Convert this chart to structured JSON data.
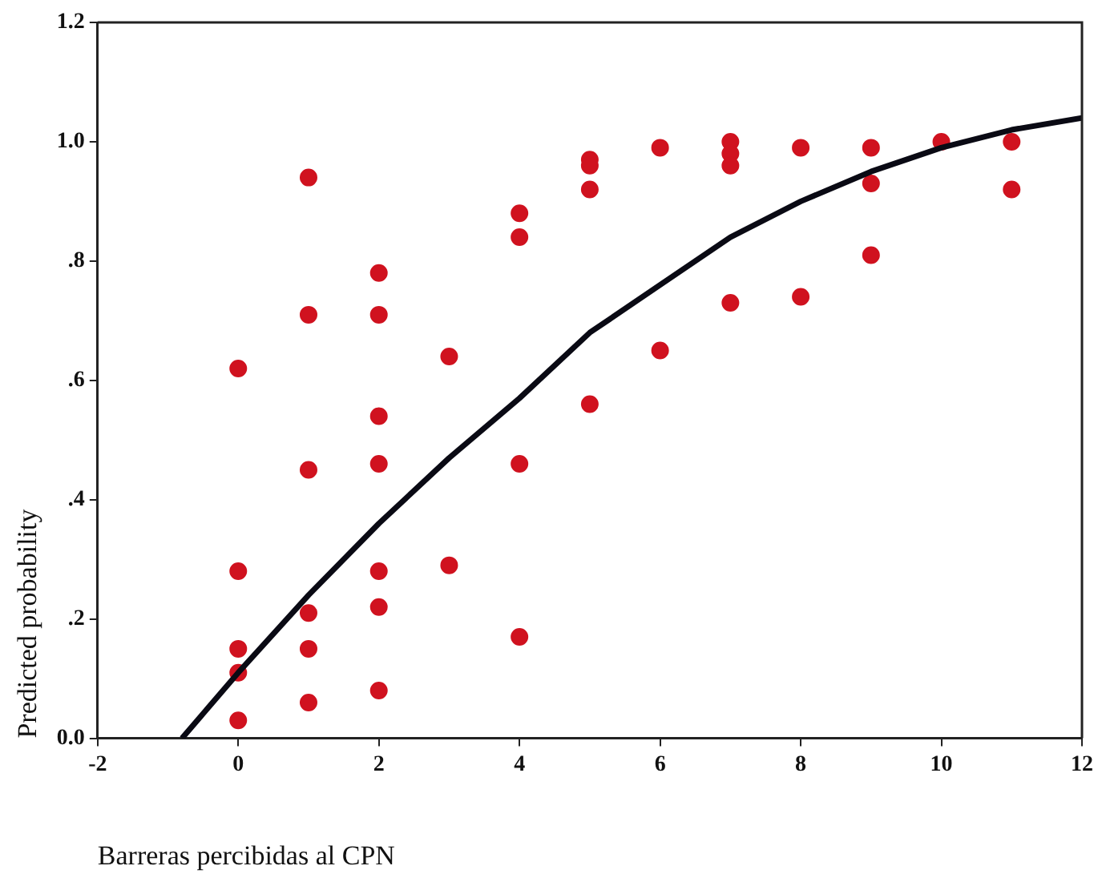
{
  "chart_data": {
    "type": "scatter",
    "xlabel": "Barreras percibidas al CPN",
    "ylabel": "Predicted probability",
    "xlim": [
      -2,
      12
    ],
    "xticks": [
      -2,
      0,
      2,
      4,
      6,
      8,
      10,
      12
    ],
    "ylim": [
      0,
      1.2
    ],
    "yticks": [
      {
        "value": 0,
        "label": "0.0"
      },
      {
        "value": 0.2,
        "label": ".2"
      },
      {
        "value": 0.4,
        "label": ".4"
      },
      {
        "value": 0.6,
        "label": ".6"
      },
      {
        "value": 0.8,
        "label": ".8"
      },
      {
        "value": 1,
        "label": "1.0"
      },
      {
        "value": 1.2,
        "label": "1.2"
      }
    ],
    "grid": false,
    "legend": false,
    "series": [
      {
        "color": "#d0121f",
        "marker": "circle",
        "x": [
          0,
          0,
          0,
          0,
          0,
          1,
          1,
          1,
          1,
          1,
          1,
          2,
          2,
          2,
          2,
          2,
          2,
          2,
          3,
          3,
          4,
          4,
          4,
          4,
          5,
          5,
          5,
          5,
          6,
          6,
          7,
          7,
          7,
          7,
          8,
          8,
          9,
          9,
          9,
          10,
          11,
          11
        ],
        "values": [
          0.62,
          0.28,
          0.15,
          0.11,
          0.03,
          0.94,
          0.71,
          0.45,
          0.21,
          0.15,
          0.06,
          0.78,
          0.71,
          0.54,
          0.46,
          0.28,
          0.22,
          0.08,
          0.64,
          0.29,
          0.88,
          0.84,
          0.46,
          0.17,
          0.97,
          0.96,
          0.92,
          0.56,
          0.99,
          0.65,
          1.0,
          0.98,
          0.96,
          0.73,
          0.99,
          0.74,
          0.99,
          0.93,
          0.81,
          1.0,
          1.0,
          0.92
        ]
      },
      {
        "type": "line",
        "color": "#0a0a14",
        "marker": "none",
        "line_style": "solid",
        "x": [
          -0.8,
          0,
          1,
          2,
          3,
          4,
          5,
          6,
          7,
          8,
          9,
          10,
          11,
          12
        ],
        "values": [
          0,
          0.11,
          0.24,
          0.36,
          0.47,
          0.57,
          0.68,
          0.76,
          0.84,
          0.9,
          0.95,
          0.99,
          1.02,
          1.04
        ]
      }
    ]
  }
}
